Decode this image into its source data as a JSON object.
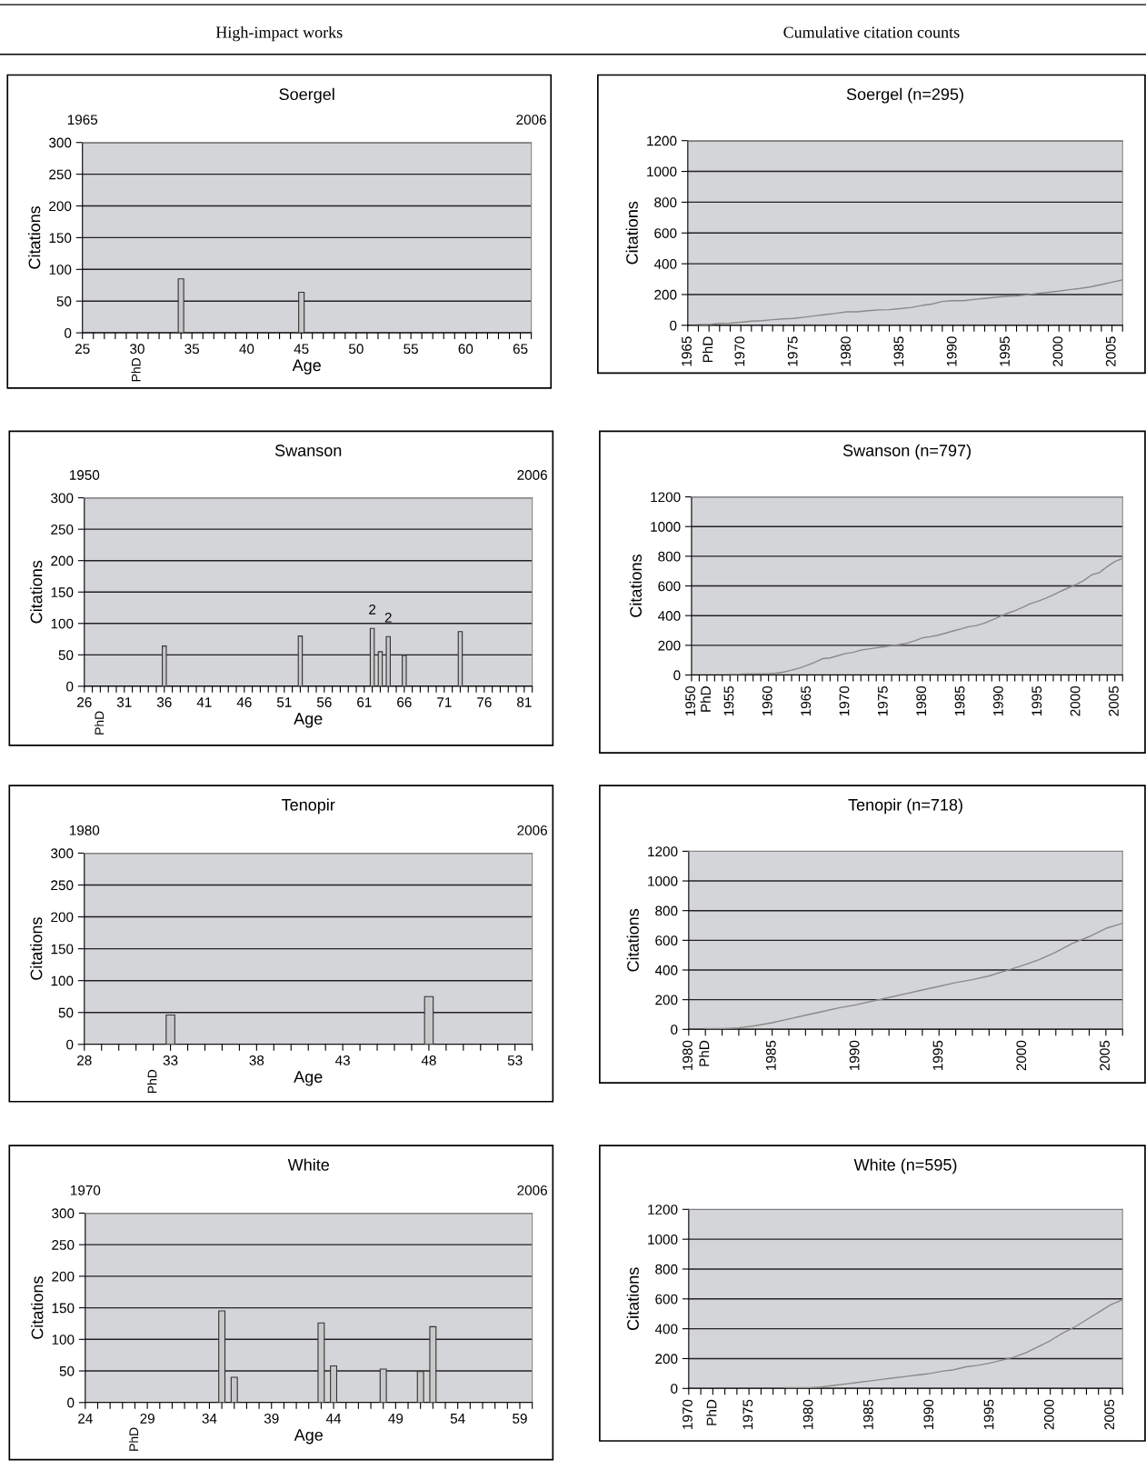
{
  "chart_data": [
    {
      "type": "bar",
      "title": "Soergel",
      "xlabel": "Age",
      "ylabel": "Citations",
      "subtitle": "High-impact works",
      "annotations": [
        "PhD"
      ],
      "x": [
        34,
        45
      ],
      "values": [
        85,
        64
      ],
      "color": "#c8c8c8",
      "grid": "y",
      "xlim": [
        25,
        66
      ],
      "ylim": [
        0,
        300
      ],
      "yticks": [
        0,
        50,
        100,
        150,
        200,
        250,
        300
      ],
      "x2lim": [
        1965,
        2006
      ],
      "x2ticks": [
        1965,
        2006
      ],
      "xticks": [
        25,
        {
          "value": 26,
          "label": null
        },
        {
          "value": 27,
          "label": null
        },
        {
          "value": 28,
          "label": null
        },
        {
          "value": 29,
          "label": null
        },
        30,
        {
          "value": 31,
          "label": null
        },
        {
          "value": 32,
          "label": null
        },
        {
          "value": 33,
          "label": null
        },
        {
          "value": 34,
          "label": null
        },
        35,
        {
          "value": 36,
          "label": null
        },
        {
          "value": 37,
          "label": null
        },
        {
          "value": 38,
          "label": null
        },
        {
          "value": 39,
          "label": null
        },
        40,
        {
          "value": 41,
          "label": null
        },
        {
          "value": 42,
          "label": null
        },
        {
          "value": 43,
          "label": null
        },
        {
          "value": 44,
          "label": null
        },
        45,
        {
          "value": 46,
          "label": null
        },
        {
          "value": 47,
          "label": null
        },
        {
          "value": 48,
          "label": null
        },
        {
          "value": 49,
          "label": null
        },
        50,
        {
          "value": 51,
          "label": null
        },
        {
          "value": 52,
          "label": null
        },
        {
          "value": 53,
          "label": null
        },
        {
          "value": 54,
          "label": null
        },
        55,
        {
          "value": 56,
          "label": null
        },
        {
          "value": 57,
          "label": null
        },
        {
          "value": 58,
          "label": null
        },
        {
          "value": 59,
          "label": null
        },
        60,
        {
          "value": 61,
          "label": null
        },
        {
          "value": 62,
          "label": null
        },
        {
          "value": 63,
          "label": null
        },
        {
          "value": 64,
          "label": null
        },
        65,
        {
          "value": 66,
          "label": null
        }
      ]
    },
    {
      "type": "line",
      "title": "Soergel (n=295)",
      "ylabel": "Citations",
      "subtitle": "Cumulative citation counts",
      "color": "#8a8a8a",
      "grid": "y",
      "xlim": [
        1965,
        2006
      ],
      "ylim": [
        0,
        1200
      ],
      "yticks": [
        0,
        200,
        400,
        600,
        800,
        1000,
        1200
      ],
      "x": [
        1966,
        1967,
        1968,
        1969,
        1970,
        1971,
        1972,
        1973,
        1974,
        1975,
        1976,
        1977,
        1978,
        1979,
        1980,
        1981,
        1982,
        1983,
        1984,
        1985,
        1986,
        1987,
        1988,
        1989,
        1990,
        1991,
        1992,
        1993,
        1994,
        1995,
        1996,
        1997,
        1998,
        1999,
        2000,
        2001,
        2002,
        2003,
        2004,
        2005,
        2006
      ],
      "values": [
        5,
        5,
        12,
        14,
        20,
        27,
        30,
        37,
        42,
        45,
        53,
        62,
        70,
        78,
        88,
        88,
        95,
        100,
        102,
        108,
        115,
        128,
        138,
        155,
        160,
        160,
        168,
        175,
        182,
        188,
        190,
        198,
        208,
        215,
        222,
        232,
        240,
        250,
        265,
        280,
        295
      ],
      "xticks": [
        1965,
        {
          "value": 1966,
          "label": null
        },
        {
          "value": 1967,
          "label": "PhD"
        },
        {
          "value": 1968,
          "label": null
        },
        {
          "value": 1969,
          "label": null
        },
        1970,
        {
          "value": 1971,
          "label": null
        },
        {
          "value": 1972,
          "label": null
        },
        {
          "value": 1973,
          "label": null
        },
        {
          "value": 1974,
          "label": null
        },
        1975,
        {
          "value": 1976,
          "label": null
        },
        {
          "value": 1977,
          "label": null
        },
        {
          "value": 1978,
          "label": null
        },
        {
          "value": 1979,
          "label": null
        },
        1980,
        {
          "value": 1981,
          "label": null
        },
        {
          "value": 1982,
          "label": null
        },
        {
          "value": 1983,
          "label": null
        },
        {
          "value": 1984,
          "label": null
        },
        1985,
        {
          "value": 1986,
          "label": null
        },
        {
          "value": 1987,
          "label": null
        },
        {
          "value": 1988,
          "label": null
        },
        {
          "value": 1989,
          "label": null
        },
        1990,
        {
          "value": 1991,
          "label": null
        },
        {
          "value": 1992,
          "label": null
        },
        {
          "value": 1993,
          "label": null
        },
        {
          "value": 1994,
          "label": null
        },
        1995,
        {
          "value": 1996,
          "label": null
        },
        {
          "value": 1997,
          "label": null
        },
        {
          "value": 1998,
          "label": null
        },
        {
          "value": 1999,
          "label": null
        },
        2000,
        {
          "value": 2001,
          "label": null
        },
        {
          "value": 2002,
          "label": null
        },
        {
          "value": 2003,
          "label": null
        },
        {
          "value": 2004,
          "label": null
        },
        2005,
        {
          "value": 2006,
          "label": null
        }
      ]
    },
    {
      "type": "bar",
      "title": "Swanson",
      "xlabel": "Age",
      "ylabel": "Citations",
      "annotations": [
        "PhD",
        {
          "text": "2",
          "x": 62,
          "y": 92
        },
        {
          "text": "2",
          "x": 64,
          "y": 79
        }
      ],
      "x": [
        36,
        53,
        62,
        63,
        64,
        66,
        73
      ],
      "values": [
        64,
        80,
        92,
        55,
        79,
        49,
        87
      ],
      "color": "#c8c8c8",
      "grid": "y",
      "xlim": [
        26,
        82
      ],
      "ylim": [
        0,
        300
      ],
      "yticks": [
        0,
        50,
        100,
        150,
        200,
        250,
        300
      ],
      "x2lim": [
        1950,
        2006
      ],
      "x2ticks": [
        1950,
        2006
      ],
      "xticks": [
        26,
        {
          "value": 27,
          "label": null
        },
        {
          "value": 28,
          "label": null
        },
        {
          "value": 29,
          "label": null
        },
        {
          "value": 30,
          "label": null
        },
        31,
        {
          "value": 32,
          "label": null
        },
        {
          "value": 33,
          "label": null
        },
        {
          "value": 34,
          "label": null
        },
        {
          "value": 35,
          "label": null
        },
        36,
        {
          "value": 37,
          "label": null
        },
        {
          "value": 38,
          "label": null
        },
        {
          "value": 39,
          "label": null
        },
        {
          "value": 40,
          "label": null
        },
        41,
        {
          "value": 42,
          "label": null
        },
        {
          "value": 43,
          "label": null
        },
        {
          "value": 44,
          "label": null
        },
        {
          "value": 45,
          "label": null
        },
        46,
        {
          "value": 47,
          "label": null
        },
        {
          "value": 48,
          "label": null
        },
        {
          "value": 49,
          "label": null
        },
        {
          "value": 50,
          "label": null
        },
        51,
        {
          "value": 52,
          "label": null
        },
        {
          "value": 53,
          "label": null
        },
        {
          "value": 54,
          "label": null
        },
        {
          "value": 55,
          "label": null
        },
        56,
        {
          "value": 57,
          "label": null
        },
        {
          "value": 58,
          "label": null
        },
        {
          "value": 59,
          "label": null
        },
        {
          "value": 60,
          "label": null
        },
        61,
        {
          "value": 62,
          "label": null
        },
        {
          "value": 63,
          "label": null
        },
        {
          "value": 64,
          "label": null
        },
        {
          "value": 65,
          "label": null
        },
        66,
        {
          "value": 67,
          "label": null
        },
        {
          "value": 68,
          "label": null
        },
        {
          "value": 69,
          "label": null
        },
        {
          "value": 70,
          "label": null
        },
        71,
        {
          "value": 72,
          "label": null
        },
        {
          "value": 73,
          "label": null
        },
        {
          "value": 74,
          "label": null
        },
        {
          "value": 75,
          "label": null
        },
        76,
        {
          "value": 77,
          "label": null
        },
        {
          "value": 78,
          "label": null
        },
        {
          "value": 79,
          "label": null
        },
        {
          "value": 80,
          "label": null
        },
        81,
        {
          "value": 82,
          "label": null
        }
      ]
    },
    {
      "type": "line",
      "title": "Swanson (n=797)",
      "ylabel": "Citations",
      "color": "#8a8a8a",
      "grid": "y",
      "xlim": [
        1950,
        2006
      ],
      "ylim": [
        0,
        1200
      ],
      "yticks": [
        0,
        200,
        400,
        600,
        800,
        1000,
        1200
      ],
      "x": [
        1955,
        1956,
        1957,
        1958,
        1959,
        1960,
        1961,
        1962,
        1963,
        1964,
        1965,
        1966,
        1967,
        1968,
        1969,
        1970,
        1971,
        1972,
        1973,
        1974,
        1975,
        1976,
        1977,
        1978,
        1979,
        1980,
        1981,
        1982,
        1983,
        1984,
        1985,
        1986,
        1987,
        1988,
        1989,
        1990,
        1991,
        1992,
        1993,
        1994,
        1995,
        1996,
        1997,
        1998,
        1999,
        2000,
        2001,
        2002,
        2003,
        2004,
        2005,
        2006
      ],
      "values": [
        3,
        3,
        8,
        8,
        8,
        8,
        12,
        20,
        33,
        47,
        65,
        85,
        110,
        115,
        130,
        145,
        152,
        168,
        175,
        183,
        190,
        198,
        205,
        215,
        230,
        250,
        258,
        268,
        282,
        297,
        310,
        325,
        333,
        348,
        370,
        393,
        415,
        433,
        455,
        480,
        497,
        517,
        540,
        565,
        588,
        610,
        638,
        675,
        690,
        730,
        765,
        785
      ],
      "xticks": [
        1950,
        {
          "value": 1951,
          "label": null
        },
        {
          "value": 1952,
          "label": "PhD"
        },
        {
          "value": 1953,
          "label": null
        },
        {
          "value": 1954,
          "label": null
        },
        1955,
        {
          "value": 1956,
          "label": null
        },
        {
          "value": 1957,
          "label": null
        },
        {
          "value": 1958,
          "label": null
        },
        {
          "value": 1959,
          "label": null
        },
        1960,
        {
          "value": 1961,
          "label": null
        },
        {
          "value": 1962,
          "label": null
        },
        {
          "value": 1963,
          "label": null
        },
        {
          "value": 1964,
          "label": null
        },
        1965,
        {
          "value": 1966,
          "label": null
        },
        {
          "value": 1967,
          "label": null
        },
        {
          "value": 1968,
          "label": null
        },
        {
          "value": 1969,
          "label": null
        },
        1970,
        {
          "value": 1971,
          "label": null
        },
        {
          "value": 1972,
          "label": null
        },
        {
          "value": 1973,
          "label": null
        },
        {
          "value": 1974,
          "label": null
        },
        1975,
        {
          "value": 1976,
          "label": null
        },
        {
          "value": 1977,
          "label": null
        },
        {
          "value": 1978,
          "label": null
        },
        {
          "value": 1979,
          "label": null
        },
        1980,
        {
          "value": 1981,
          "label": null
        },
        {
          "value": 1982,
          "label": null
        },
        {
          "value": 1983,
          "label": null
        },
        {
          "value": 1984,
          "label": null
        },
        1985,
        {
          "value": 1986,
          "label": null
        },
        {
          "value": 1987,
          "label": null
        },
        {
          "value": 1988,
          "label": null
        },
        {
          "value": 1989,
          "label": null
        },
        1990,
        {
          "value": 1991,
          "label": null
        },
        {
          "value": 1992,
          "label": null
        },
        {
          "value": 1993,
          "label": null
        },
        {
          "value": 1994,
          "label": null
        },
        1995,
        {
          "value": 1996,
          "label": null
        },
        {
          "value": 1997,
          "label": null
        },
        {
          "value": 1998,
          "label": null
        },
        {
          "value": 1999,
          "label": null
        },
        2000,
        {
          "value": 2001,
          "label": null
        },
        {
          "value": 2002,
          "label": null
        },
        {
          "value": 2003,
          "label": null
        },
        {
          "value": 2004,
          "label": null
        },
        2005,
        {
          "value": 2006,
          "label": null
        }
      ]
    },
    {
      "type": "bar",
      "title": "Tenopir",
      "xlabel": "Age",
      "ylabel": "Citations",
      "annotations": [
        "PhD"
      ],
      "x": [
        33,
        48
      ],
      "values": [
        46,
        75
      ],
      "color": "#c8c8c8",
      "grid": "y",
      "xlim": [
        28,
        54
      ],
      "ylim": [
        0,
        300
      ],
      "yticks": [
        0,
        50,
        100,
        150,
        200,
        250,
        300
      ],
      "x2lim": [
        1980,
        2006
      ],
      "x2ticks": [
        1980,
        2006
      ],
      "xticks": [
        28,
        {
          "value": 29,
          "label": null
        },
        {
          "value": 30,
          "label": null
        },
        {
          "value": 31,
          "label": null
        },
        {
          "value": 32,
          "label": null
        },
        33,
        {
          "value": 34,
          "label": null
        },
        {
          "value": 35,
          "label": null
        },
        {
          "value": 36,
          "label": null
        },
        {
          "value": 37,
          "label": null
        },
        38,
        {
          "value": 39,
          "label": null
        },
        {
          "value": 40,
          "label": null
        },
        {
          "value": 41,
          "label": null
        },
        {
          "value": 42,
          "label": null
        },
        43,
        {
          "value": 44,
          "label": null
        },
        {
          "value": 45,
          "label": null
        },
        {
          "value": 46,
          "label": null
        },
        {
          "value": 47,
          "label": null
        },
        48,
        {
          "value": 49,
          "label": null
        },
        {
          "value": 50,
          "label": null
        },
        {
          "value": 51,
          "label": null
        },
        {
          "value": 52,
          "label": null
        },
        53,
        {
          "value": 54,
          "label": null
        }
      ]
    },
    {
      "type": "line",
      "title": "Tenopir (n=718)",
      "ylabel": "Citations",
      "color": "#8a8a8a",
      "grid": "y",
      "xlim": [
        1980,
        2006
      ],
      "ylim": [
        0,
        1200
      ],
      "yticks": [
        0,
        200,
        400,
        600,
        800,
        1000,
        1200
      ],
      "x": [
        1981,
        1982,
        1983,
        1984,
        1985,
        1986,
        1987,
        1988,
        1989,
        1990,
        1991,
        1992,
        1993,
        1994,
        1995,
        1996,
        1997,
        1998,
        1999,
        2000,
        2001,
        2002,
        2003,
        2004,
        2005,
        2006
      ],
      "values": [
        5,
        5,
        10,
        25,
        45,
        70,
        95,
        120,
        145,
        165,
        190,
        215,
        240,
        265,
        290,
        315,
        335,
        360,
        395,
        430,
        470,
        520,
        580,
        625,
        680,
        715
      ],
      "xticks": [
        1980,
        {
          "value": 1981,
          "label": "PhD"
        },
        {
          "value": 1982,
          "label": null
        },
        {
          "value": 1983,
          "label": null
        },
        {
          "value": 1984,
          "label": null
        },
        1985,
        {
          "value": 1986,
          "label": null
        },
        {
          "value": 1987,
          "label": null
        },
        {
          "value": 1988,
          "label": null
        },
        {
          "value": 1989,
          "label": null
        },
        1990,
        {
          "value": 1991,
          "label": null
        },
        {
          "value": 1992,
          "label": null
        },
        {
          "value": 1993,
          "label": null
        },
        {
          "value": 1994,
          "label": null
        },
        1995,
        {
          "value": 1996,
          "label": null
        },
        {
          "value": 1997,
          "label": null
        },
        {
          "value": 1998,
          "label": null
        },
        {
          "value": 1999,
          "label": null
        },
        2000,
        {
          "value": 2001,
          "label": null
        },
        {
          "value": 2002,
          "label": null
        },
        {
          "value": 2003,
          "label": null
        },
        {
          "value": 2004,
          "label": null
        },
        2005,
        {
          "value": 2006,
          "label": null
        }
      ]
    },
    {
      "type": "bar",
      "title": "White",
      "xlabel": "Age",
      "ylabel": "Citations",
      "annotations": [
        "PhD"
      ],
      "x": [
        35,
        36,
        43,
        44,
        48,
        51,
        52
      ],
      "values": [
        145,
        40,
        126,
        58,
        53,
        49,
        120
      ],
      "color": "#c8c8c8",
      "grid": "y",
      "xlim": [
        24,
        60
      ],
      "ylim": [
        0,
        300
      ],
      "yticks": [
        0,
        50,
        100,
        150,
        200,
        250,
        300
      ],
      "x2lim": [
        1970,
        2006
      ],
      "x2ticks": [
        1970,
        2006
      ],
      "xticks": [
        24,
        {
          "value": 25,
          "label": null
        },
        {
          "value": 26,
          "label": null
        },
        {
          "value": 27,
          "label": null
        },
        {
          "value": 28,
          "label": null
        },
        29,
        {
          "value": 30,
          "label": null
        },
        {
          "value": 31,
          "label": null
        },
        {
          "value": 32,
          "label": null
        },
        {
          "value": 33,
          "label": null
        },
        34,
        {
          "value": 35,
          "label": null
        },
        {
          "value": 36,
          "label": null
        },
        {
          "value": 37,
          "label": null
        },
        {
          "value": 38,
          "label": null
        },
        39,
        {
          "value": 40,
          "label": null
        },
        {
          "value": 41,
          "label": null
        },
        {
          "value": 42,
          "label": null
        },
        {
          "value": 43,
          "label": null
        },
        44,
        {
          "value": 45,
          "label": null
        },
        {
          "value": 46,
          "label": null
        },
        {
          "value": 47,
          "label": null
        },
        {
          "value": 48,
          "label": null
        },
        49,
        {
          "value": 50,
          "label": null
        },
        {
          "value": 51,
          "label": null
        },
        {
          "value": 52,
          "label": null
        },
        {
          "value": 53,
          "label": null
        },
        54,
        {
          "value": 55,
          "label": null
        },
        {
          "value": 56,
          "label": null
        },
        {
          "value": 57,
          "label": null
        },
        {
          "value": 58,
          "label": null
        },
        59,
        {
          "value": 60,
          "label": null
        }
      ]
    },
    {
      "type": "line",
      "title": "White (n=595)",
      "ylabel": "Citations",
      "color": "#8a8a8a",
      "grid": "y",
      "xlim": [
        1970,
        2006
      ],
      "ylim": [
        0,
        1200
      ],
      "yticks": [
        0,
        200,
        400,
        600,
        800,
        1000,
        1200
      ],
      "x": [
        1978,
        1979,
        1980,
        1981,
        1982,
        1983,
        1984,
        1985,
        1986,
        1987,
        1988,
        1989,
        1990,
        1991,
        1992,
        1993,
        1994,
        1995,
        1996,
        1997,
        1998,
        1999,
        2000,
        2001,
        2002,
        2003,
        2004,
        2005,
        2006
      ],
      "values": [
        5,
        5,
        5,
        10,
        20,
        30,
        40,
        50,
        60,
        70,
        80,
        90,
        100,
        115,
        125,
        145,
        155,
        170,
        190,
        210,
        240,
        280,
        320,
        370,
        410,
        460,
        510,
        560,
        595
      ],
      "xticks": [
        1970,
        {
          "value": 1971,
          "label": null
        },
        {
          "value": 1972,
          "label": "PhD"
        },
        {
          "value": 1973,
          "label": null
        },
        {
          "value": 1974,
          "label": null
        },
        1975,
        {
          "value": 1976,
          "label": null
        },
        {
          "value": 1977,
          "label": null
        },
        {
          "value": 1978,
          "label": null
        },
        {
          "value": 1979,
          "label": null
        },
        1980,
        {
          "value": 1981,
          "label": null
        },
        {
          "value": 1982,
          "label": null
        },
        {
          "value": 1983,
          "label": null
        },
        {
          "value": 1984,
          "label": null
        },
        1985,
        {
          "value": 1986,
          "label": null
        },
        {
          "value": 1987,
          "label": null
        },
        {
          "value": 1988,
          "label": null
        },
        {
          "value": 1989,
          "label": null
        },
        1990,
        {
          "value": 1991,
          "label": null
        },
        {
          "value": 1992,
          "label": null
        },
        {
          "value": 1993,
          "label": null
        },
        {
          "value": 1994,
          "label": null
        },
        1995,
        {
          "value": 1996,
          "label": null
        },
        {
          "value": 1997,
          "label": null
        },
        {
          "value": 1998,
          "label": null
        },
        {
          "value": 1999,
          "label": null
        },
        2000,
        {
          "value": 2001,
          "label": null
        },
        {
          "value": 2002,
          "label": null
        },
        {
          "value": 2003,
          "label": null
        },
        {
          "value": 2004,
          "label": null
        },
        2005,
        {
          "value": 2006,
          "label": null
        }
      ]
    }
  ]
}
